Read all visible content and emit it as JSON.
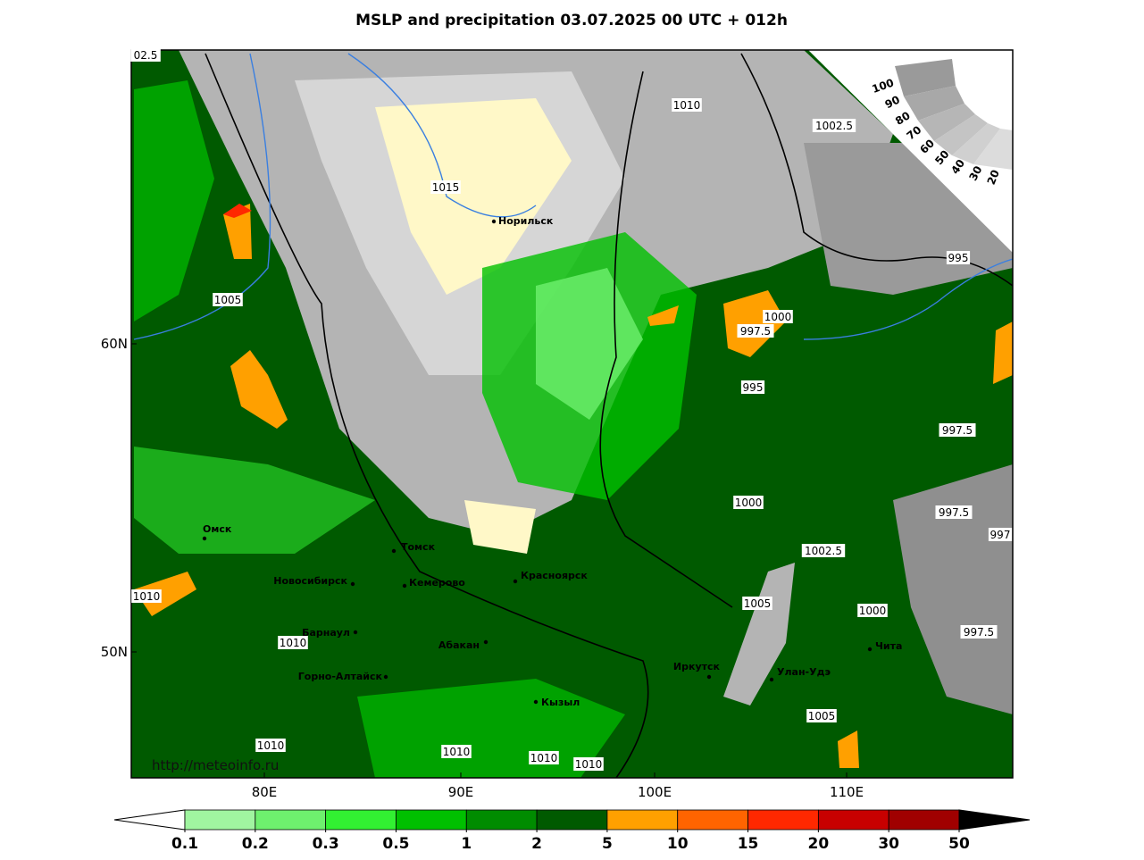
{
  "title": "MSLP and precipitation 03.07.2025 00 UTC + 012h",
  "map": {
    "lat_labels": [
      "60N",
      "50N"
    ],
    "lon_labels": [
      "80E",
      "90E",
      "100E",
      "110E"
    ],
    "url": "http://meteoinfo.ru",
    "cities": [
      "Норильск",
      "Омск",
      "Томск",
      "Новосибирск",
      "Кемерово",
      "Красноярск",
      "Барнаул",
      "Абакан",
      "Горно-Алтайск",
      "Кызыл",
      "Иркутск",
      "Улан-Удэ",
      "Чита"
    ],
    "isobar_labels": [
      "1015",
      "1010",
      "1002.5",
      "995",
      "1005",
      "1000",
      "997.5",
      "995",
      "997.5",
      "1000",
      "997.5",
      "997",
      "1002.5",
      "1005",
      "1000",
      "997.5",
      "1010",
      "1010",
      "1010",
      "1010",
      "1010",
      "1010",
      "1005",
      "02.5"
    ]
  },
  "cloud_scale": [
    "100",
    "90",
    "80",
    "70",
    "60",
    "50",
    "40",
    "30",
    "20"
  ],
  "colorbar": {
    "ticks": [
      0.1,
      0.2,
      0.3,
      0.5,
      1,
      2,
      5,
      10,
      15,
      20,
      30,
      50
    ],
    "colors": [
      "#a0f5a0",
      "#6ef06e",
      "#32f032",
      "#00c000",
      "#008c00",
      "#005a00",
      "#ffa000",
      "#ff6400",
      "#ff2800",
      "#c80000",
      "#a00000"
    ]
  }
}
